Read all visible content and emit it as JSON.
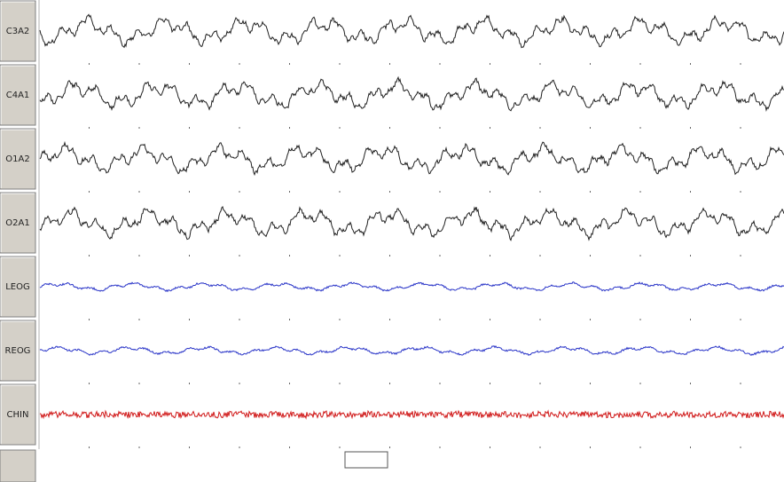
{
  "channels": [
    {
      "label": "C3A2",
      "color": "#202020"
    },
    {
      "label": "C4A1",
      "color": "#202020"
    },
    {
      "label": "O1A2",
      "color": "#202020"
    },
    {
      "label": "O2A1",
      "color": "#202020"
    },
    {
      "label": "LEOG",
      "color": "#2a35c8"
    },
    {
      "label": "REOG",
      "color": "#2a35c8"
    },
    {
      "label": "CHIN",
      "color": "#d01818"
    }
  ]
}
